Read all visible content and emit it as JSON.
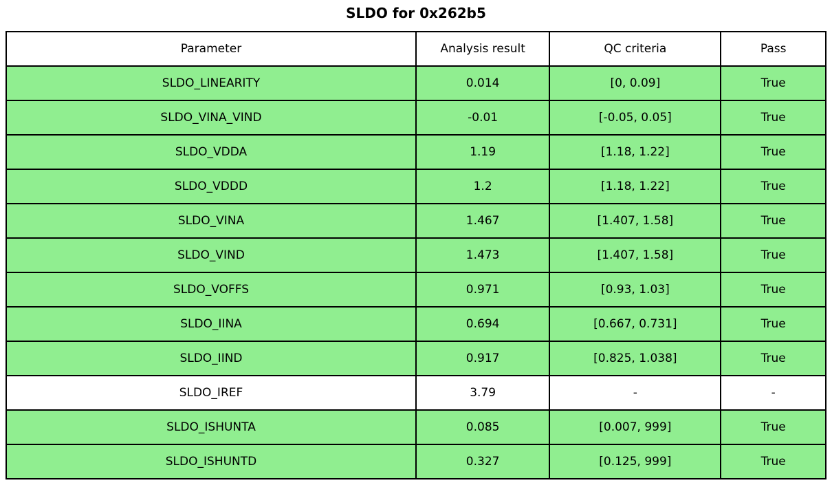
{
  "title": "SLDO for 0x262b5",
  "colors": {
    "pass_row_bg": "#90ee90",
    "neutral_row_bg": "#ffffff",
    "border": "#000000",
    "text": "#000000"
  },
  "table": {
    "headers": [
      "Parameter",
      "Analysis result",
      "QC criteria",
      "Pass"
    ],
    "rows": [
      {
        "parameter": "SLDO_LINEARITY",
        "result": "0.014",
        "criteria": "[0, 0.09]",
        "pass": "True",
        "highlighted": true
      },
      {
        "parameter": "SLDO_VINA_VIND",
        "result": "-0.01",
        "criteria": "[-0.05, 0.05]",
        "pass": "True",
        "highlighted": true
      },
      {
        "parameter": "SLDO_VDDA",
        "result": "1.19",
        "criteria": "[1.18, 1.22]",
        "pass": "True",
        "highlighted": true
      },
      {
        "parameter": "SLDO_VDDD",
        "result": "1.2",
        "criteria": "[1.18, 1.22]",
        "pass": "True",
        "highlighted": true
      },
      {
        "parameter": "SLDO_VINA",
        "result": "1.467",
        "criteria": "[1.407, 1.58]",
        "pass": "True",
        "highlighted": true
      },
      {
        "parameter": "SLDO_VIND",
        "result": "1.473",
        "criteria": "[1.407, 1.58]",
        "pass": "True",
        "highlighted": true
      },
      {
        "parameter": "SLDO_VOFFS",
        "result": "0.971",
        "criteria": "[0.93, 1.03]",
        "pass": "True",
        "highlighted": true
      },
      {
        "parameter": "SLDO_IINA",
        "result": "0.694",
        "criteria": "[0.667, 0.731]",
        "pass": "True",
        "highlighted": true
      },
      {
        "parameter": "SLDO_IIND",
        "result": "0.917",
        "criteria": "[0.825, 1.038]",
        "pass": "True",
        "highlighted": true
      },
      {
        "parameter": "SLDO_IREF",
        "result": "3.79",
        "criteria": "-",
        "pass": "-",
        "highlighted": false
      },
      {
        "parameter": "SLDO_ISHUNTA",
        "result": "0.085",
        "criteria": "[0.007, 999]",
        "pass": "True",
        "highlighted": true
      },
      {
        "parameter": "SLDO_ISHUNTD",
        "result": "0.327",
        "criteria": "[0.125, 999]",
        "pass": "True",
        "highlighted": true
      }
    ]
  },
  "chart_data": {
    "type": "table",
    "title": "SLDO for 0x262b5",
    "columns": [
      "Parameter",
      "Analysis result",
      "QC criteria",
      "Pass"
    ],
    "rows": [
      [
        "SLDO_LINEARITY",
        0.014,
        "[0, 0.09]",
        "True"
      ],
      [
        "SLDO_VINA_VIND",
        -0.01,
        "[-0.05, 0.05]",
        "True"
      ],
      [
        "SLDO_VDDA",
        1.19,
        "[1.18, 1.22]",
        "True"
      ],
      [
        "SLDO_VDDD",
        1.2,
        "[1.18, 1.22]",
        "True"
      ],
      [
        "SLDO_VINA",
        1.467,
        "[1.407, 1.58]",
        "True"
      ],
      [
        "SLDO_VIND",
        1.473,
        "[1.407, 1.58]",
        "True"
      ],
      [
        "SLDO_VOFFS",
        0.971,
        "[0.93, 1.03]",
        "True"
      ],
      [
        "SLDO_IINA",
        0.694,
        "[0.667, 0.731]",
        "True"
      ],
      [
        "SLDO_IIND",
        0.917,
        "[0.825, 1.038]",
        "True"
      ],
      [
        "SLDO_IREF",
        3.79,
        "-",
        "-"
      ],
      [
        "SLDO_ISHUNTA",
        0.085,
        "[0.007, 999]",
        "True"
      ],
      [
        "SLDO_ISHUNTD",
        0.327,
        "[0.125, 999]",
        "True"
      ]
    ],
    "legend_position": "none",
    "grid": true
  }
}
